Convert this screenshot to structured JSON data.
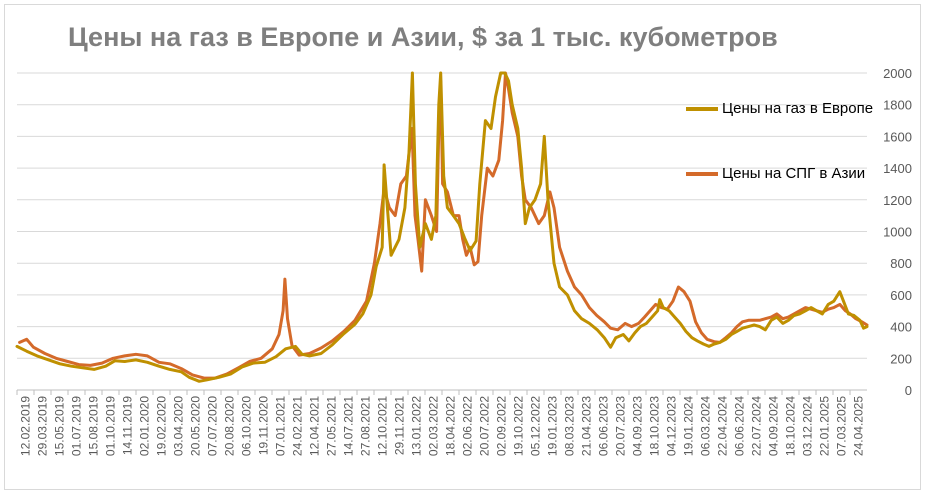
{
  "chart_data": {
    "type": "line",
    "title": "Цены на газ в Европе и Азии, $ за 1 тыс. кубометров",
    "xlabel": "",
    "ylabel": "",
    "ylim": [
      0,
      2000
    ],
    "y_ticks": [
      0,
      200,
      400,
      600,
      800,
      1000,
      1200,
      1400,
      1600,
      1800,
      2000
    ],
    "y_axis_side": "right",
    "grid": "horizontal",
    "legend_position": "right",
    "x_range": [
      "2019-01-25",
      "2025-04-24"
    ],
    "x_tick_labels": [
      "12.02.2019",
      "29.03.2019",
      "15.05.2019",
      "01.07.2019",
      "15.08.2019",
      "01.10.2019",
      "14.11.2019",
      "02.01.2020",
      "19.02.2020",
      "03.04.2020",
      "20.05.2020",
      "07.07.2020",
      "20.08.2020",
      "06.10.2020",
      "19.11.2020",
      "07.01.2021",
      "24.02.2021",
      "12.04.2021",
      "27.05.2021",
      "14.07.2021",
      "27.08.2021",
      "12.10.2021",
      "29.11.2021",
      "13.01.2022",
      "02.03.2022",
      "18.04.2022",
      "02.06.2022",
      "20.07.2022",
      "02.09.2022",
      "19.10.2022",
      "05.12.2022",
      "19.01.2023",
      "08.03.2023",
      "21.04.2023",
      "06.06.2023",
      "20.07.2023",
      "04.09.2023",
      "18.10.2023",
      "04.12.2023",
      "19.01.2024",
      "06.03.2024",
      "22.04.2024",
      "06.06.2024",
      "22.07.2024",
      "04.09.2024",
      "18.10.2024",
      "03.12.2024",
      "22.01.2025",
      "07.03.2025",
      "24.04.2025"
    ],
    "series": [
      {
        "name": "Цены на газ в Европе",
        "color": "#bf9000",
        "points": [
          [
            "2019-01-25",
            275
          ],
          [
            "2019-02-20",
            245
          ],
          [
            "2019-03-20",
            215
          ],
          [
            "2019-04-20",
            190
          ],
          [
            "2019-05-20",
            165
          ],
          [
            "2019-06-20",
            150
          ],
          [
            "2019-07-20",
            140
          ],
          [
            "2019-08-20",
            130
          ],
          [
            "2019-09-20",
            150
          ],
          [
            "2019-10-15",
            185
          ],
          [
            "2019-11-10",
            180
          ],
          [
            "2019-12-10",
            190
          ],
          [
            "2020-01-10",
            175
          ],
          [
            "2020-02-10",
            150
          ],
          [
            "2020-03-10",
            130
          ],
          [
            "2020-04-10",
            115
          ],
          [
            "2020-05-01",
            80
          ],
          [
            "2020-05-28",
            55
          ],
          [
            "2020-06-20",
            65
          ],
          [
            "2020-07-20",
            80
          ],
          [
            "2020-08-20",
            100
          ],
          [
            "2020-09-20",
            145
          ],
          [
            "2020-10-20",
            170
          ],
          [
            "2020-11-20",
            175
          ],
          [
            "2020-12-20",
            210
          ],
          [
            "2021-01-15",
            260
          ],
          [
            "2021-02-10",
            275
          ],
          [
            "2021-02-28",
            225
          ],
          [
            "2021-03-20",
            215
          ],
          [
            "2021-04-20",
            230
          ],
          [
            "2021-05-20",
            285
          ],
          [
            "2021-06-20",
            355
          ],
          [
            "2021-07-20",
            415
          ],
          [
            "2021-08-10",
            480
          ],
          [
            "2021-09-01",
            600
          ],
          [
            "2021-09-15",
            780
          ],
          [
            "2021-10-01",
            900
          ],
          [
            "2021-10-06",
            1420
          ],
          [
            "2021-10-15",
            1150
          ],
          [
            "2021-10-25",
            850
          ],
          [
            "2021-11-15",
            950
          ],
          [
            "2021-12-01",
            1150
          ],
          [
            "2021-12-12",
            1500
          ],
          [
            "2021-12-21",
            2000
          ],
          [
            "2021-12-29",
            1300
          ],
          [
            "2022-01-10",
            900
          ],
          [
            "2022-01-25",
            1050
          ],
          [
            "2022-02-10",
            950
          ],
          [
            "2022-02-22",
            1100
          ],
          [
            "2022-03-02",
            1800
          ],
          [
            "2022-03-07",
            2000
          ],
          [
            "2022-03-15",
            1350
          ],
          [
            "2022-03-25",
            1150
          ],
          [
            "2022-04-10",
            1100
          ],
          [
            "2022-04-25",
            1050
          ],
          [
            "2022-05-10",
            960
          ],
          [
            "2022-05-25",
            880
          ],
          [
            "2022-06-10",
            940
          ],
          [
            "2022-06-20",
            1300
          ],
          [
            "2022-07-05",
            1700
          ],
          [
            "2022-07-20",
            1650
          ],
          [
            "2022-08-01",
            1850
          ],
          [
            "2022-08-15",
            2000
          ],
          [
            "2022-08-26",
            2000
          ],
          [
            "2022-09-05",
            1950
          ],
          [
            "2022-09-15",
            1800
          ],
          [
            "2022-09-30",
            1650
          ],
          [
            "2022-10-10",
            1400
          ],
          [
            "2022-10-20",
            1050
          ],
          [
            "2022-10-31",
            1150
          ],
          [
            "2022-11-15",
            1200
          ],
          [
            "2022-11-30",
            1300
          ],
          [
            "2022-12-10",
            1600
          ],
          [
            "2022-12-20",
            1200
          ],
          [
            "2023-01-05",
            800
          ],
          [
            "2023-01-20",
            650
          ],
          [
            "2023-02-10",
            600
          ],
          [
            "2023-03-01",
            500
          ],
          [
            "2023-03-20",
            450
          ],
          [
            "2023-04-10",
            420
          ],
          [
            "2023-05-01",
            380
          ],
          [
            "2023-05-20",
            330
          ],
          [
            "2023-06-06",
            270
          ],
          [
            "2023-06-20",
            330
          ],
          [
            "2023-07-10",
            350
          ],
          [
            "2023-07-25",
            310
          ],
          [
            "2023-08-10",
            360
          ],
          [
            "2023-08-25",
            400
          ],
          [
            "2023-09-10",
            420
          ],
          [
            "2023-09-25",
            460
          ],
          [
            "2023-10-10",
            500
          ],
          [
            "2023-10-16",
            570
          ],
          [
            "2023-10-25",
            520
          ],
          [
            "2023-11-10",
            500
          ],
          [
            "2023-11-25",
            460
          ],
          [
            "2023-12-10",
            420
          ],
          [
            "2023-12-25",
            370
          ],
          [
            "2024-01-10",
            330
          ],
          [
            "2024-01-25",
            310
          ],
          [
            "2024-02-10",
            290
          ],
          [
            "2024-02-25",
            275
          ],
          [
            "2024-03-10",
            290
          ],
          [
            "2024-03-25",
            300
          ],
          [
            "2024-04-10",
            320
          ],
          [
            "2024-04-25",
            350
          ],
          [
            "2024-05-10",
            370
          ],
          [
            "2024-05-25",
            390
          ],
          [
            "2024-06-10",
            400
          ],
          [
            "2024-06-25",
            410
          ],
          [
            "2024-07-10",
            400
          ],
          [
            "2024-07-25",
            380
          ],
          [
            "2024-08-10",
            440
          ],
          [
            "2024-08-25",
            460
          ],
          [
            "2024-09-10",
            420
          ],
          [
            "2024-09-25",
            440
          ],
          [
            "2024-10-10",
            470
          ],
          [
            "2024-10-25",
            480
          ],
          [
            "2024-11-10",
            500
          ],
          [
            "2024-11-25",
            520
          ],
          [
            "2024-12-10",
            500
          ],
          [
            "2024-12-25",
            480
          ],
          [
            "2025-01-10",
            540
          ],
          [
            "2025-01-25",
            560
          ],
          [
            "2025-02-10",
            620
          ],
          [
            "2025-02-20",
            560
          ],
          [
            "2025-03-05",
            480
          ],
          [
            "2025-03-20",
            470
          ],
          [
            "2025-04-05",
            440
          ],
          [
            "2025-04-15",
            390
          ],
          [
            "2025-04-24",
            400
          ]
        ]
      },
      {
        "name": "Цены на СПГ в Азии",
        "color": "#d46a2a",
        "points": [
          [
            "2019-02-01",
            300
          ],
          [
            "2019-02-20",
            320
          ],
          [
            "2019-03-10",
            270
          ],
          [
            "2019-04-10",
            230
          ],
          [
            "2019-05-10",
            200
          ],
          [
            "2019-06-10",
            180
          ],
          [
            "2019-07-10",
            160
          ],
          [
            "2019-08-10",
            155
          ],
          [
            "2019-09-10",
            170
          ],
          [
            "2019-10-10",
            200
          ],
          [
            "2019-11-10",
            215
          ],
          [
            "2019-12-10",
            225
          ],
          [
            "2020-01-10",
            215
          ],
          [
            "2020-02-10",
            175
          ],
          [
            "2020-03-10",
            165
          ],
          [
            "2020-04-10",
            135
          ],
          [
            "2020-05-10",
            95
          ],
          [
            "2020-06-10",
            75
          ],
          [
            "2020-07-10",
            75
          ],
          [
            "2020-08-10",
            100
          ],
          [
            "2020-09-10",
            140
          ],
          [
            "2020-10-10",
            180
          ],
          [
            "2020-11-10",
            200
          ],
          [
            "2020-12-10",
            260
          ],
          [
            "2020-12-28",
            350
          ],
          [
            "2021-01-08",
            500
          ],
          [
            "2021-01-13",
            700
          ],
          [
            "2021-01-20",
            450
          ],
          [
            "2021-02-01",
            280
          ],
          [
            "2021-02-20",
            220
          ],
          [
            "2021-03-20",
            230
          ],
          [
            "2021-04-20",
            265
          ],
          [
            "2021-05-20",
            310
          ],
          [
            "2021-06-20",
            370
          ],
          [
            "2021-07-20",
            440
          ],
          [
            "2021-08-20",
            560
          ],
          [
            "2021-09-10",
            800
          ],
          [
            "2021-09-25",
            1050
          ],
          [
            "2021-10-06",
            1270
          ],
          [
            "2021-10-20",
            1150
          ],
          [
            "2021-11-05",
            1100
          ],
          [
            "2021-11-20",
            1300
          ],
          [
            "2021-12-05",
            1350
          ],
          [
            "2021-12-20",
            1650
          ],
          [
            "2021-12-28",
            1100
          ],
          [
            "2022-01-05",
            950
          ],
          [
            "2022-01-15",
            750
          ],
          [
            "2022-01-25",
            1200
          ],
          [
            "2022-02-10",
            1100
          ],
          [
            "2022-02-24",
            1000
          ],
          [
            "2022-03-02",
            1650
          ],
          [
            "2022-03-07",
            1950
          ],
          [
            "2022-03-12",
            1300
          ],
          [
            "2022-03-25",
            1250
          ],
          [
            "2022-04-10",
            1100
          ],
          [
            "2022-04-25",
            1100
          ],
          [
            "2022-05-05",
            950
          ],
          [
            "2022-05-15",
            850
          ],
          [
            "2022-05-25",
            900
          ],
          [
            "2022-06-05",
            790
          ],
          [
            "2022-06-15",
            810
          ],
          [
            "2022-06-25",
            1100
          ],
          [
            "2022-07-10",
            1400
          ],
          [
            "2022-07-25",
            1350
          ],
          [
            "2022-08-10",
            1450
          ],
          [
            "2022-08-20",
            1700
          ],
          [
            "2022-08-28",
            2000
          ],
          [
            "2022-09-05",
            1900
          ],
          [
            "2022-09-15",
            1750
          ],
          [
            "2022-09-30",
            1600
          ],
          [
            "2022-10-10",
            1350
          ],
          [
            "2022-10-20",
            1200
          ],
          [
            "2022-11-05",
            1150
          ],
          [
            "2022-11-25",
            1050
          ],
          [
            "2022-12-10",
            1100
          ],
          [
            "2022-12-25",
            1250
          ],
          [
            "2023-01-05",
            1150
          ],
          [
            "2023-01-20",
            900
          ],
          [
            "2023-02-10",
            750
          ],
          [
            "2023-03-01",
            650
          ],
          [
            "2023-03-20",
            600
          ],
          [
            "2023-04-10",
            520
          ],
          [
            "2023-04-30",
            470
          ],
          [
            "2023-05-20",
            430
          ],
          [
            "2023-06-06",
            390
          ],
          [
            "2023-06-25",
            380
          ],
          [
            "2023-07-15",
            420
          ],
          [
            "2023-08-01",
            400
          ],
          [
            "2023-08-20",
            420
          ],
          [
            "2023-09-05",
            460
          ],
          [
            "2023-09-20",
            500
          ],
          [
            "2023-10-05",
            540
          ],
          [
            "2023-10-20",
            520
          ],
          [
            "2023-11-05",
            510
          ],
          [
            "2023-11-20",
            560
          ],
          [
            "2023-12-05",
            650
          ],
          [
            "2023-12-20",
            620
          ],
          [
            "2024-01-05",
            560
          ],
          [
            "2024-01-20",
            430
          ],
          [
            "2024-02-05",
            360
          ],
          [
            "2024-02-20",
            320
          ],
          [
            "2024-03-10",
            305
          ],
          [
            "2024-03-25",
            300
          ],
          [
            "2024-04-10",
            330
          ],
          [
            "2024-04-25",
            360
          ],
          [
            "2024-05-10",
            400
          ],
          [
            "2024-05-25",
            430
          ],
          [
            "2024-06-10",
            440
          ],
          [
            "2024-06-25",
            440
          ],
          [
            "2024-07-10",
            440
          ],
          [
            "2024-07-25",
            450
          ],
          [
            "2024-08-10",
            460
          ],
          [
            "2024-08-25",
            480
          ],
          [
            "2024-09-10",
            450
          ],
          [
            "2024-09-25",
            460
          ],
          [
            "2024-10-10",
            480
          ],
          [
            "2024-10-25",
            500
          ],
          [
            "2024-11-10",
            520
          ],
          [
            "2024-11-25",
            510
          ],
          [
            "2024-12-10",
            500
          ],
          [
            "2024-12-25",
            490
          ],
          [
            "2025-01-10",
            510
          ],
          [
            "2025-01-25",
            520
          ],
          [
            "2025-02-10",
            540
          ],
          [
            "2025-02-25",
            500
          ],
          [
            "2025-03-10",
            480
          ],
          [
            "2025-03-25",
            450
          ],
          [
            "2025-04-10",
            430
          ],
          [
            "2025-04-24",
            410
          ]
        ]
      }
    ]
  }
}
